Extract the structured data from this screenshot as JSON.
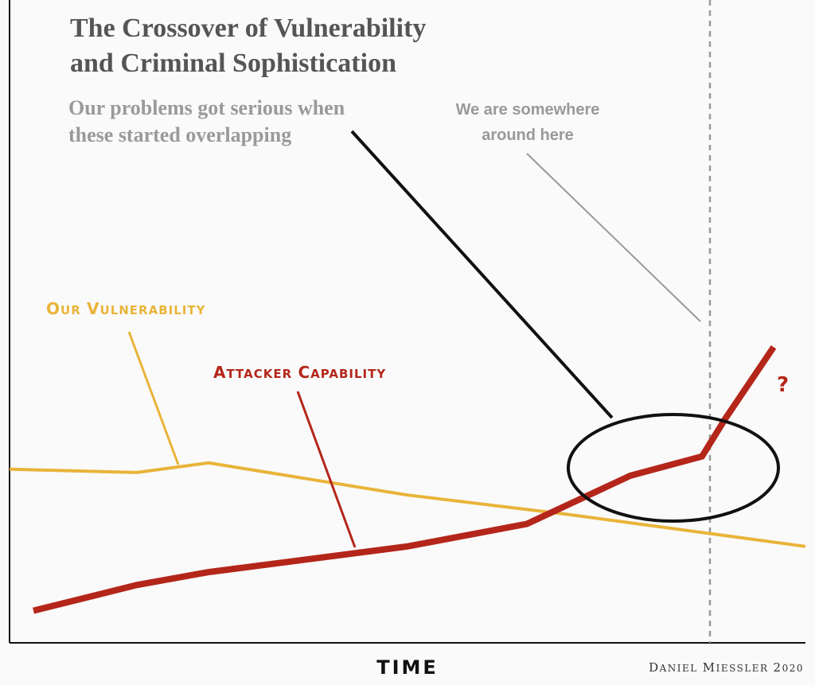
{
  "chart_data": {
    "type": "line",
    "title": "The Crossover of Vulnerability and Criminal Sophistication",
    "title_lines": [
      "The Crossover of Vulnerability",
      "and Criminal Sophistication"
    ],
    "xlabel": "TIME",
    "ylabel": "",
    "x": [
      0,
      15,
      25,
      50,
      65,
      78,
      88,
      100
    ],
    "series": [
      {
        "name": "Our Vulnerability",
        "color": "#e9b43a",
        "points": [
          [
            0,
            27
          ],
          [
            16,
            26.5
          ],
          [
            25,
            28
          ],
          [
            50,
            23
          ],
          [
            70,
            20
          ],
          [
            88,
            17
          ],
          [
            100,
            15
          ]
        ]
      },
      {
        "name": "Attacker Capability",
        "color": "#b4261a",
        "points": [
          [
            3,
            5
          ],
          [
            16,
            9
          ],
          [
            25,
            11
          ],
          [
            50,
            15
          ],
          [
            65,
            18.5
          ],
          [
            78,
            26
          ],
          [
            87,
            29
          ],
          [
            90,
            35
          ],
          [
            96,
            46
          ]
        ]
      }
    ],
    "xlim": [
      0,
      100
    ],
    "ylim": [
      0,
      100
    ],
    "grid": false,
    "legend": "none",
    "annotations": {
      "subtitle_lines": [
        "Our problems got serious when",
        "these started overlapping"
      ],
      "marker_lines": [
        "We are somewhere",
        "around here"
      ],
      "marker_x": 88,
      "question_mark": "?",
      "vuln_label": "Our Vulnerability",
      "attacker_label": "Attacker Capability"
    },
    "credit": "Daniel Miessler 2020"
  }
}
